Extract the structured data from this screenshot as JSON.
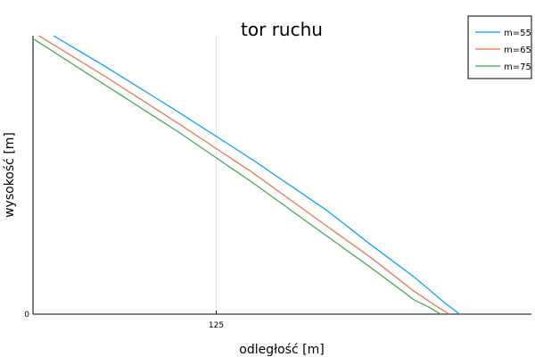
{
  "chart_data": {
    "type": "line",
    "title": "tor ruchu",
    "xlabel": "odległość [m]",
    "ylabel": "wysokość [m]",
    "x_ticks": [
      125
    ],
    "y_ticks": [
      0
    ],
    "xlim": [
      0,
      340
    ],
    "ylim": [
      0,
      195
    ],
    "grid": true,
    "legend_position": "top-right",
    "series": [
      {
        "name": "m=55",
        "color": "#009AFA",
        "x": [
          14,
          50,
          100,
          150,
          200,
          230,
          260,
          282,
          291
        ],
        "y": [
          195,
          173,
          141,
          108,
          73,
          49,
          26,
          7,
          0
        ]
      },
      {
        "name": "m=65",
        "color": "#E36F47",
        "x": [
          4,
          50,
          100,
          150,
          200,
          230,
          260,
          276,
          284
        ],
        "y": [
          195,
          166,
          133,
          99,
          62,
          40,
          16,
          5,
          0
        ]
      },
      {
        "name": "m=75",
        "color": "#3DA44D",
        "x": [
          0,
          50,
          100,
          150,
          200,
          230,
          260,
          270,
          278
        ],
        "y": [
          193,
          160,
          127,
          92,
          55,
          33,
          10,
          5,
          0
        ]
      }
    ]
  }
}
